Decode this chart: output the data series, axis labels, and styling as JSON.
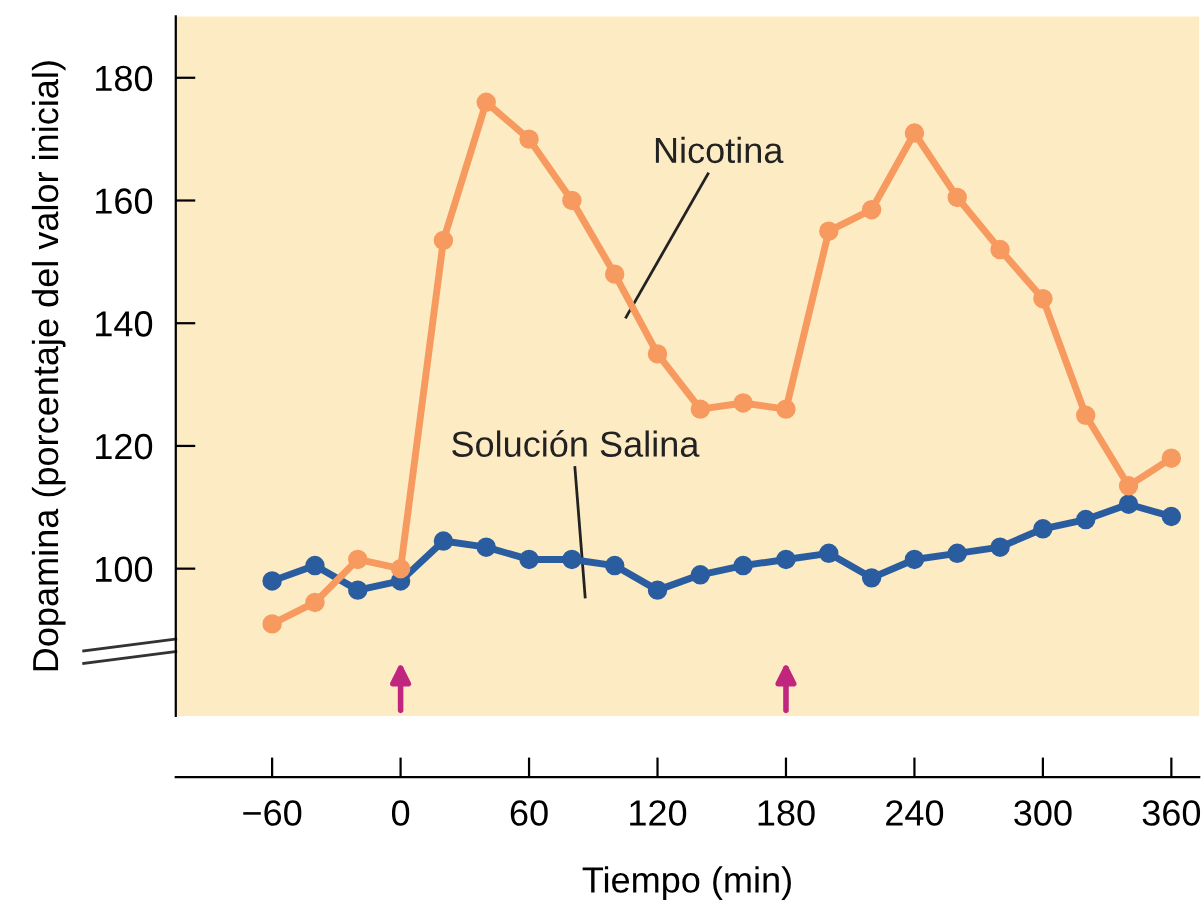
{
  "chart_data": {
    "type": "line",
    "xlabel": "Tiempo (min)",
    "ylabel": "Dopamina (porcentaje del valor inicial)",
    "x": [
      -60,
      -40,
      -20,
      0,
      20,
      40,
      60,
      80,
      100,
      120,
      140,
      160,
      180,
      200,
      220,
      240,
      260,
      280,
      300,
      320,
      340,
      360
    ],
    "series": [
      {
        "name": "Nicotina",
        "color": "#f79a5f",
        "values": [
          91,
          94.5,
          101.5,
          100,
          153.5,
          176,
          170,
          160,
          148,
          135,
          126,
          127,
          126,
          155,
          158.5,
          171,
          160.5,
          152,
          144,
          125,
          113.5,
          118
        ]
      },
      {
        "name": "Solución Salina",
        "color": "#2a5d9f",
        "values": [
          98,
          100.5,
          96.5,
          98,
          104.5,
          103.5,
          101.5,
          101.5,
          100.5,
          96.5,
          99,
          100.5,
          101.5,
          102.5,
          98.5,
          101.5,
          102.5,
          103.5,
          106.5,
          108,
          110.5,
          108.5
        ]
      }
    ],
    "xlim": [
      -105,
      373
    ],
    "ylim": [
      76,
      190
    ],
    "xticks": [
      {
        "value": -60,
        "label": "−60"
      },
      0,
      60,
      120,
      180,
      240,
      300,
      360
    ],
    "yticks": [
      100,
      120,
      140,
      160,
      180
    ],
    "marker": "circle",
    "line_style": "solid",
    "grid": false,
    "legend": false
  }
}
